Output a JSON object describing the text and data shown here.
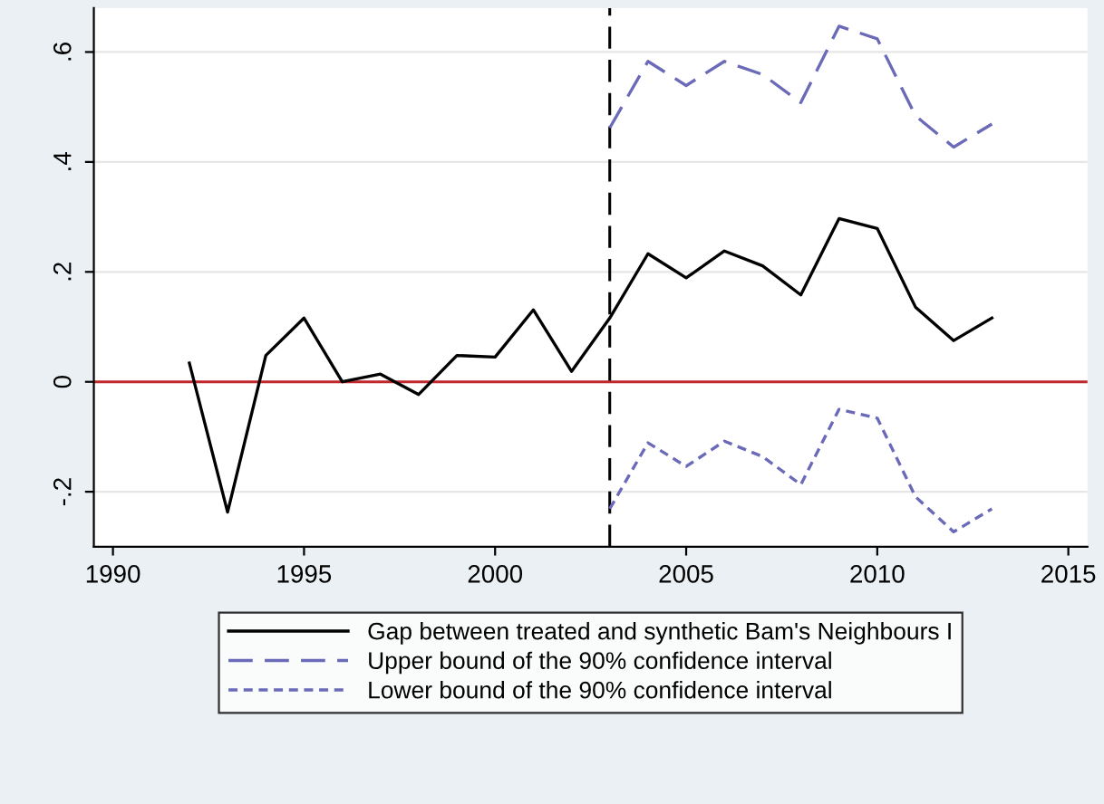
{
  "chart_data": {
    "type": "line",
    "x": [
      1992,
      1993,
      1994,
      1995,
      1996,
      1997,
      1998,
      1999,
      2000,
      2001,
      2002,
      2003,
      2004,
      2005,
      2006,
      2007,
      2008,
      2009,
      2010,
      2011,
      2012,
      2013
    ],
    "series": [
      {
        "name": "Gap between treated and synthetic Bam's Neighbours I",
        "color": "#000000",
        "line_style": "solid",
        "values": [
          0.034,
          -0.237,
          0.048,
          0.116,
          0.0,
          0.014,
          -0.023,
          0.048,
          0.045,
          0.131,
          0.019,
          0.116,
          0.233,
          0.189,
          0.238,
          0.211,
          0.158,
          0.297,
          0.279,
          0.136,
          0.075,
          0.116
        ]
      },
      {
        "name": "Upper bound of the 90% confidence interval",
        "color": "#6a6ab8",
        "line_style": "dashed",
        "values": [
          null,
          null,
          null,
          null,
          null,
          null,
          null,
          null,
          null,
          null,
          null,
          0.462,
          0.583,
          0.539,
          0.583,
          0.559,
          0.508,
          0.647,
          0.624,
          0.484,
          0.427,
          0.469
        ]
      },
      {
        "name": "Lower bound of the 90% confidence interval",
        "color": "#6a6ab8",
        "line_style": "dotted",
        "values": [
          null,
          null,
          null,
          null,
          null,
          null,
          null,
          null,
          null,
          null,
          null,
          -0.231,
          -0.111,
          -0.154,
          -0.108,
          -0.136,
          -0.187,
          -0.05,
          -0.066,
          -0.209,
          -0.273,
          -0.231
        ]
      }
    ],
    "xlim": [
      1989.5,
      2015.5
    ],
    "xticks": [
      1990,
      1995,
      2000,
      2005,
      2010,
      2015
    ],
    "ylim": [
      -0.3,
      0.68
    ],
    "yticks": [
      {
        "value": -0.2,
        "label": "-.2"
      },
      0,
      {
        "value": 0.2,
        "label": ".2"
      },
      {
        "value": 0.4,
        "label": ".4"
      },
      {
        "value": 0.6,
        "label": ".6"
      }
    ],
    "ref_lines": [
      {
        "axis": "y",
        "value": 0,
        "color": "#c0282d",
        "line_style": "solid"
      },
      {
        "axis": "x",
        "value": 2003,
        "color": "#000000",
        "line_style": "dashed"
      }
    ],
    "grid": "y",
    "legend": "bottom",
    "marker": "none"
  }
}
